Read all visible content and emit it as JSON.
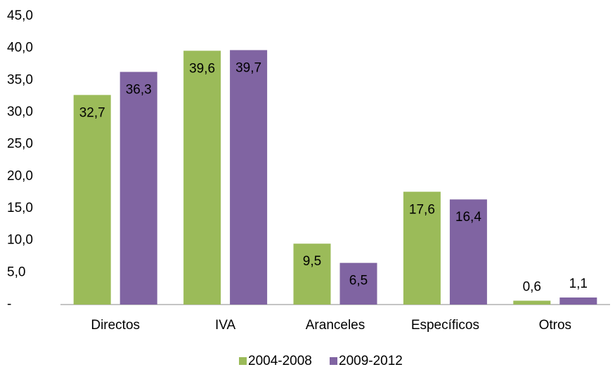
{
  "chart_data": {
    "type": "bar",
    "categories": [
      "Directos",
      "IVA",
      "Aranceles",
      "Específicos",
      "Otros"
    ],
    "series": [
      {
        "name": "2004-2008",
        "color": "#9bbb59",
        "values": [
          32.7,
          39.6,
          9.5,
          17.6,
          0.6
        ],
        "value_labels": [
          "32,7",
          "39,6",
          "9,5",
          "17,6",
          "0,6"
        ]
      },
      {
        "name": "2009-2012",
        "color": "#8064a2",
        "values": [
          36.3,
          39.7,
          6.5,
          16.4,
          1.1
        ],
        "value_labels": [
          "36,3",
          "39,7",
          "6,5",
          "16,4",
          "1,1"
        ]
      }
    ],
    "ylim": [
      0,
      45
    ],
    "yticks": [
      {
        "value": 0,
        "label": "-"
      },
      {
        "value": 5,
        "label": "5,0"
      },
      {
        "value": 10,
        "label": "10,0"
      },
      {
        "value": 15,
        "label": "15,0"
      },
      {
        "value": 20,
        "label": "20,0"
      },
      {
        "value": 25,
        "label": "25,0"
      },
      {
        "value": 30,
        "label": "30,0"
      },
      {
        "value": 35,
        "label": "35,0"
      },
      {
        "value": 40,
        "label": "40,0"
      },
      {
        "value": 45,
        "label": "45,0"
      }
    ],
    "grid": false,
    "legend": "bottom"
  }
}
